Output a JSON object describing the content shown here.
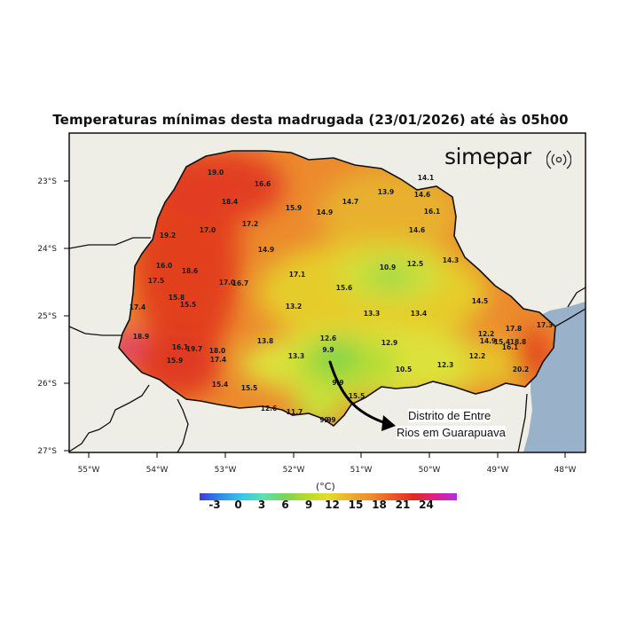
{
  "title": "Temperaturas mínimas desta madrugada (23/01/2026) até às 05h00",
  "brand": {
    "name": "simepar",
    "icon": "signal-rings-icon"
  },
  "annotation": {
    "line1": "Distrito de Entre",
    "line2": "Rios em Guarapuava",
    "icon": "curved-arrow-icon"
  },
  "axes": {
    "lon_ticks": [
      "55°W",
      "54°W",
      "53°W",
      "52°W",
      "51°W",
      "50°W",
      "49°W",
      "48°W"
    ],
    "lat_ticks": [
      "23°S",
      "24°S",
      "25°S",
      "26°S",
      "27°S"
    ]
  },
  "colorbar": {
    "unit": "(°C)",
    "labels": [
      "-3",
      "0",
      "3",
      "6",
      "9",
      "12",
      "15",
      "18",
      "21",
      "24"
    ],
    "colors": [
      "#3b3bd6",
      "#2f8fe8",
      "#38c8e8",
      "#5fe0b0",
      "#7ad35a",
      "#b5dc2a",
      "#e6dc2a",
      "#e8b030",
      "#ef8c2c",
      "#ea5a26",
      "#de2a20",
      "#e0208c",
      "#b52ce0"
    ]
  },
  "colors": {
    "ocean": "#9ab2c9",
    "land_outside": "#eeede6",
    "border": "#000000"
  },
  "stations": [
    {
      "v": "19.0"
    },
    {
      "v": "16.6"
    },
    {
      "v": "14.1"
    },
    {
      "v": "18.4"
    },
    {
      "v": "13.9"
    },
    {
      "v": "14.6"
    },
    {
      "v": "14.7"
    },
    {
      "v": "15.9"
    },
    {
      "v": "14.9"
    },
    {
      "v": "16.1"
    },
    {
      "v": "19.2"
    },
    {
      "v": "17.0"
    },
    {
      "v": "17.2"
    },
    {
      "v": "14.6"
    },
    {
      "v": "14.9"
    },
    {
      "v": "14.3"
    },
    {
      "v": "16.0"
    },
    {
      "v": "18.6"
    },
    {
      "v": "10.9"
    },
    {
      "v": "12.5"
    },
    {
      "v": "17.5"
    },
    {
      "v": "17.1"
    },
    {
      "v": "17.0"
    },
    {
      "v": "16.7"
    },
    {
      "v": "15.6"
    },
    {
      "v": "15.8"
    },
    {
      "v": "15.5"
    },
    {
      "v": "14.5"
    },
    {
      "v": "17.4"
    },
    {
      "v": "13.2"
    },
    {
      "v": "13.3"
    },
    {
      "v": "13.4"
    },
    {
      "v": "17.3"
    },
    {
      "v": "18.9"
    },
    {
      "v": "13.8"
    },
    {
      "v": "12.6"
    },
    {
      "v": "12.9"
    },
    {
      "v": "12.2"
    },
    {
      "v": "17.8"
    },
    {
      "v": "16.1"
    },
    {
      "v": "19.7"
    },
    {
      "v": "18.0"
    },
    {
      "v": "14.9"
    },
    {
      "v": "15.4"
    },
    {
      "v": "18.8"
    },
    {
      "v": "15.9"
    },
    {
      "v": "17.4"
    },
    {
      "v": "13.3"
    },
    {
      "v": "9.9"
    },
    {
      "v": "12.2"
    },
    {
      "v": "16.1"
    },
    {
      "v": "10.5"
    },
    {
      "v": "12.3"
    },
    {
      "v": "20.2"
    },
    {
      "v": "15.4"
    },
    {
      "v": "15.5"
    },
    {
      "v": "9.9"
    },
    {
      "v": "15.5"
    },
    {
      "v": "12.6"
    },
    {
      "v": "11.7"
    },
    {
      "v": "9.9"
    },
    {
      "v": "9.9"
    }
  ]
}
